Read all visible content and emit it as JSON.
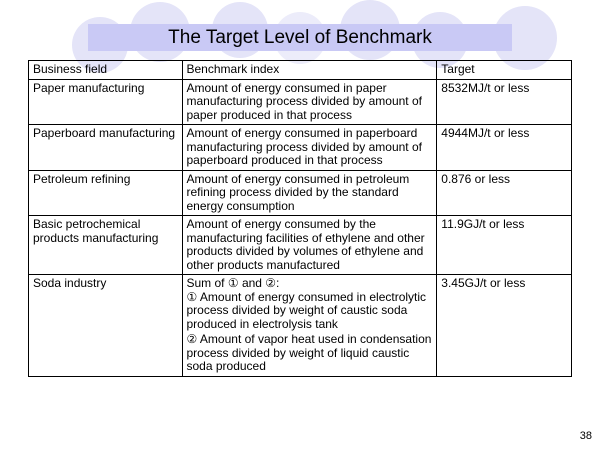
{
  "slide": {
    "title": "The Target Level of Benchmark",
    "page_number": "38",
    "accent_color": "#c9c9f5",
    "decor_color": "#e4e4f8"
  },
  "table": {
    "headers": [
      "Business field",
      "Benchmark index",
      "Target"
    ],
    "rows": [
      {
        "field": "Paper manufacturing",
        "index": "Amount of energy consumed in paper manufacturing process divided by amount of paper produced in that process",
        "target": "8532MJ/t or less"
      },
      {
        "field": "Paperboard manufacturing",
        "index": "Amount of energy consumed in paperboard manufacturing process divided by amount of paperboard produced in that process",
        "target": "4944MJ/t or less"
      },
      {
        "field": "Petroleum refining",
        "index": "Amount of energy consumed in petroleum refining process divided by the standard energy consumption",
        "target": "0.876 or less"
      },
      {
        "field": "Basic petrochemical products manufacturing",
        "index": "Amount of energy consumed by the manufacturing facilities of ethylene and other products divided by volumes of ethylene and other products manufactured",
        "target": "11.9GJ/t or less"
      },
      {
        "field": "Soda industry",
        "index_intro": "Sum of ① and ②:",
        "index_part1": "① Amount of energy consumed in electrolytic process divided by weight of caustic soda produced in electrolysis tank",
        "index_part2": "② Amount of vapor heat used in condensation process divided by weight of liquid caustic soda produced",
        "target": "3.45GJ/t or less"
      }
    ]
  }
}
